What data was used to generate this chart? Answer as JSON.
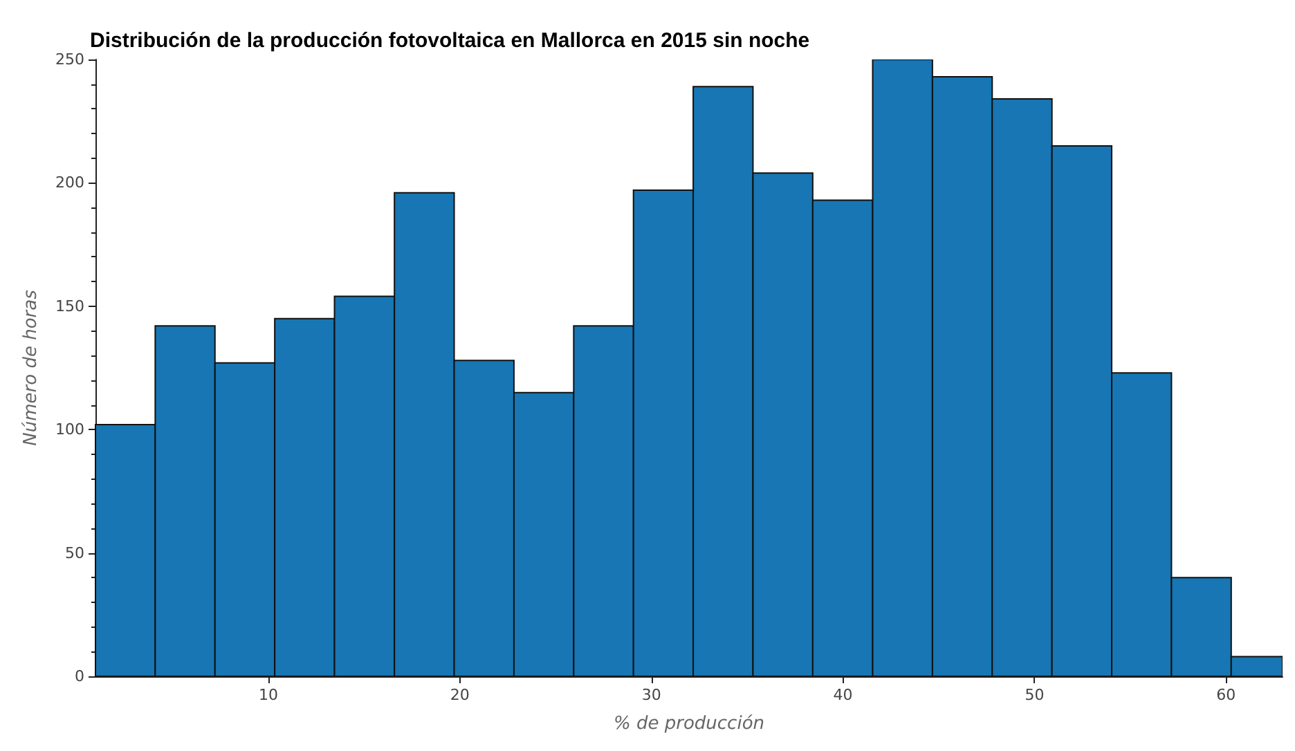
{
  "chart_data": {
    "type": "histogram",
    "title": "Distribución de la producción fotovoltaica en Mallorca en 2015 sin noche",
    "xlabel": "% de producción",
    "ylabel": "Número de horas",
    "bins": [
      0.97,
      4.09,
      7.21,
      10.33,
      13.45,
      16.58,
      19.7,
      22.82,
      25.94,
      29.06,
      32.18,
      35.3,
      38.42,
      41.55,
      44.67,
      47.79,
      50.91,
      54.03,
      57.15,
      60.27,
      63.39
    ],
    "values": [
      102,
      142,
      127,
      145,
      154,
      196,
      128,
      115,
      142,
      197,
      239,
      204,
      193,
      250,
      243,
      234,
      215,
      123,
      40,
      8
    ],
    "color": "#1776b3",
    "xlim": [
      0.97,
      62.95
    ],
    "xticks": [
      10,
      20,
      30,
      40,
      50,
      60
    ],
    "ylim": [
      0,
      250
    ],
    "yticks": [
      0,
      50,
      100,
      150,
      200,
      250
    ],
    "grid": false
  }
}
